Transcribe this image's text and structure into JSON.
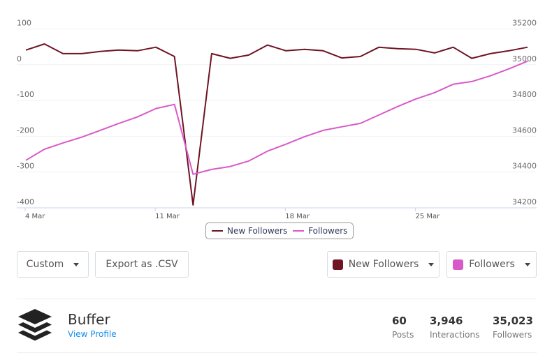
{
  "chart_data": {
    "type": "line",
    "title": "",
    "xlabel": "",
    "ylabel": "",
    "x": [
      "4 Mar",
      "5 Mar",
      "6 Mar",
      "7 Mar",
      "8 Mar",
      "9 Mar",
      "10 Mar",
      "11 Mar",
      "12 Mar",
      "13 Mar",
      "14 Mar",
      "15 Mar",
      "16 Mar",
      "17 Mar",
      "18 Mar",
      "19 Mar",
      "20 Mar",
      "21 Mar",
      "22 Mar",
      "23 Mar",
      "24 Mar",
      "25 Mar",
      "26 Mar",
      "27 Mar",
      "28 Mar",
      "29 Mar",
      "30 Mar",
      "31 Mar"
    ],
    "x_ticks": [
      "4 Mar",
      "11 Mar",
      "18 Mar",
      "25 Mar"
    ],
    "y_left": {
      "ticks": [
        100,
        0,
        -100,
        -200,
        -300,
        -400
      ],
      "range": [
        -400,
        100
      ]
    },
    "y_right": {
      "ticks": [
        35200,
        35000,
        34800,
        34600,
        34400,
        34200
      ],
      "range": [
        34200,
        35200
      ]
    },
    "grid": true,
    "legend_position": "bottom",
    "series": [
      {
        "name": "New Followers",
        "axis": "left",
        "color": "#6e1423",
        "values": [
          41,
          58,
          31,
          31,
          37,
          41,
          39,
          49,
          23,
          -392,
          31,
          18,
          27,
          55,
          39,
          43,
          39,
          19,
          23,
          49,
          45,
          43,
          33,
          49,
          18,
          31,
          39,
          49
        ]
      },
      {
        "name": "Followers",
        "axis": "right",
        "color": "#d85ac8",
        "values": [
          34466,
          34528,
          34563,
          34595,
          34633,
          34672,
          34708,
          34755,
          34778,
          34388,
          34415,
          34431,
          34462,
          34517,
          34556,
          34598,
          34633,
          34653,
          34672,
          34719,
          34766,
          34809,
          34844,
          34891,
          34906,
          34938,
          34977,
          35020
        ]
      }
    ]
  },
  "legend": {
    "items": [
      {
        "label": "New Followers",
        "color": "#6e1423"
      },
      {
        "label": "Followers",
        "color": "#d85ac8"
      }
    ]
  },
  "controls": {
    "range_label": "Custom",
    "export_label": "Export as .CSV",
    "series1_label": "New Followers",
    "series1_color": "#6e1423",
    "series2_label": "Followers",
    "series2_color": "#d85ac8"
  },
  "profile": {
    "name": "Buffer",
    "link": "View Profile",
    "logo_icon": "buffer-stack-icon",
    "stats": [
      {
        "value": "60",
        "label": "Posts"
      },
      {
        "value": "3,946",
        "label": "Interactions"
      },
      {
        "value": "35,023",
        "label": "Followers"
      }
    ]
  }
}
